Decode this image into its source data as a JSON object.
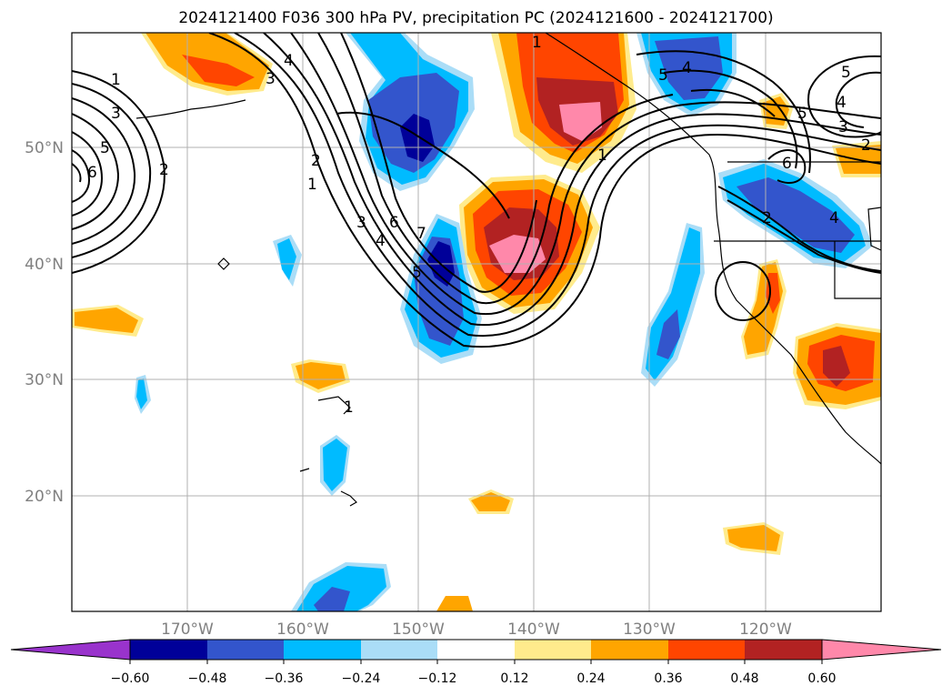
{
  "title": "2024121400 F036 300 hPa PV, precipitation PC (2024121600 - 2024121700)",
  "map": {
    "lon_range": [
      -180,
      -110
    ],
    "lat_range": [
      10,
      60
    ],
    "lat_labels": [
      "50°N",
      "40°N",
      "30°N",
      "20°N"
    ],
    "lon_labels": [
      "170°W",
      "160°W",
      "150°W",
      "140°W",
      "130°W",
      "120°W"
    ],
    "pv_contour_labels": [
      {
        "text": "1"
      },
      {
        "text": "3"
      },
      {
        "text": "5"
      },
      {
        "text": "6"
      },
      {
        "text": "2"
      },
      {
        "text": "3"
      },
      {
        "text": "4"
      },
      {
        "text": "2"
      },
      {
        "text": "1"
      },
      {
        "text": "3"
      },
      {
        "text": "4"
      },
      {
        "text": "6"
      },
      {
        "text": "7"
      },
      {
        "text": "5"
      },
      {
        "text": "1"
      },
      {
        "text": "5"
      },
      {
        "text": "4"
      },
      {
        "text": "1"
      },
      {
        "text": "5"
      },
      {
        "text": "4"
      },
      {
        "text": "3"
      },
      {
        "text": "5"
      },
      {
        "text": "6"
      },
      {
        "text": "2"
      },
      {
        "text": "4"
      },
      {
        "text": "2"
      },
      {
        "text": "1"
      }
    ]
  },
  "colorbar": {
    "colors": [
      "#9933cc",
      "#000099",
      "#3355cc",
      "#00bbff",
      "#aaddf7",
      "#ffffff",
      "#ffeb8c",
      "#ffa500",
      "#ff4500",
      "#b22222",
      "#ff88aa"
    ],
    "tick_labels": [
      "−0.60",
      "−0.48",
      "−0.36",
      "−0.24",
      "−0.12",
      "0.12",
      "0.24",
      "0.36",
      "0.48",
      "0.60"
    ]
  }
}
